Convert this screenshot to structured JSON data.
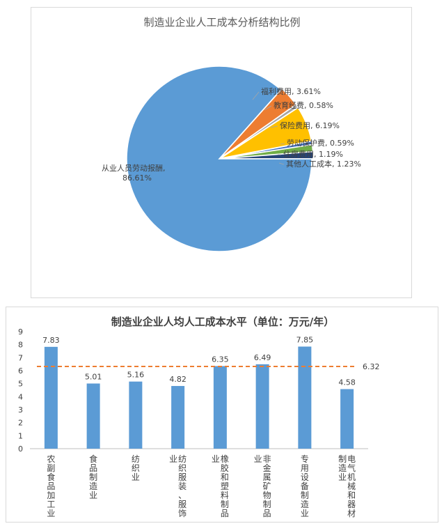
{
  "chart_data": [
    {
      "type": "pie",
      "title": "制造业企业人工成本分析结构比例",
      "slices": [
        {
          "label": "从业人员劳动报酬,",
          "label2": "86.61%",
          "value": 86.61,
          "color": "#5b9bd5"
        },
        {
          "label": "福利费用, 3.61%",
          "value": 3.61,
          "color": "#ed7d31"
        },
        {
          "label": "教育经费, 0.58%",
          "value": 0.58,
          "color": "#a5a5a5"
        },
        {
          "label": "保险费用, 6.19%",
          "value": 6.19,
          "color": "#ffc000"
        },
        {
          "label": "劳动保护费, 0.59%",
          "value": 0.59,
          "color": "#4472c4"
        },
        {
          "label": "住房费用, 1.19%",
          "value": 1.19,
          "color": "#70ad47"
        },
        {
          "label": "其他人工成本, 1.23%",
          "value": 1.23,
          "color": "#264478"
        }
      ]
    },
    {
      "type": "bar",
      "title": "制造业企业人均人工成本水平（单位：万元/年）",
      "categories": [
        [
          "农",
          "副",
          "食",
          "品",
          "加",
          "工",
          "业"
        ],
        [
          "食",
          "品",
          "制",
          "造",
          "业"
        ],
        [
          "纺",
          "织",
          "业"
        ],
        [
          "纺",
          "织",
          "服",
          "装",
          "、",
          "服",
          "饰",
          "业"
        ],
        [
          "橡",
          "胶",
          "和",
          "塑",
          "料",
          "制",
          "品",
          "业"
        ],
        [
          "非",
          "金",
          "属",
          "矿",
          "物",
          "制",
          "品",
          "业"
        ],
        [
          "专",
          "用",
          "设",
          "备",
          "制",
          "造",
          "业"
        ],
        [
          "电",
          "气",
          "机",
          "械",
          "和",
          "器",
          "材",
          "制",
          "造",
          "业"
        ]
      ],
      "values": [
        7.83,
        5.01,
        5.16,
        4.82,
        6.35,
        6.49,
        7.85,
        4.58
      ],
      "value_labels": [
        "7.83",
        "5.01",
        "5.16",
        "4.82",
        "6.35",
        "6.49",
        "7.85",
        "4.58"
      ],
      "average": 6.32,
      "average_label": "6.32",
      "ylim": [
        0,
        9
      ],
      "yticks": [
        "0",
        "1",
        "2",
        "3",
        "4",
        "5",
        "6",
        "7",
        "8",
        "9"
      ],
      "bar_color": "#5b9bd5",
      "average_color": "#ed7d31",
      "grid": false,
      "legend": "none"
    }
  ]
}
